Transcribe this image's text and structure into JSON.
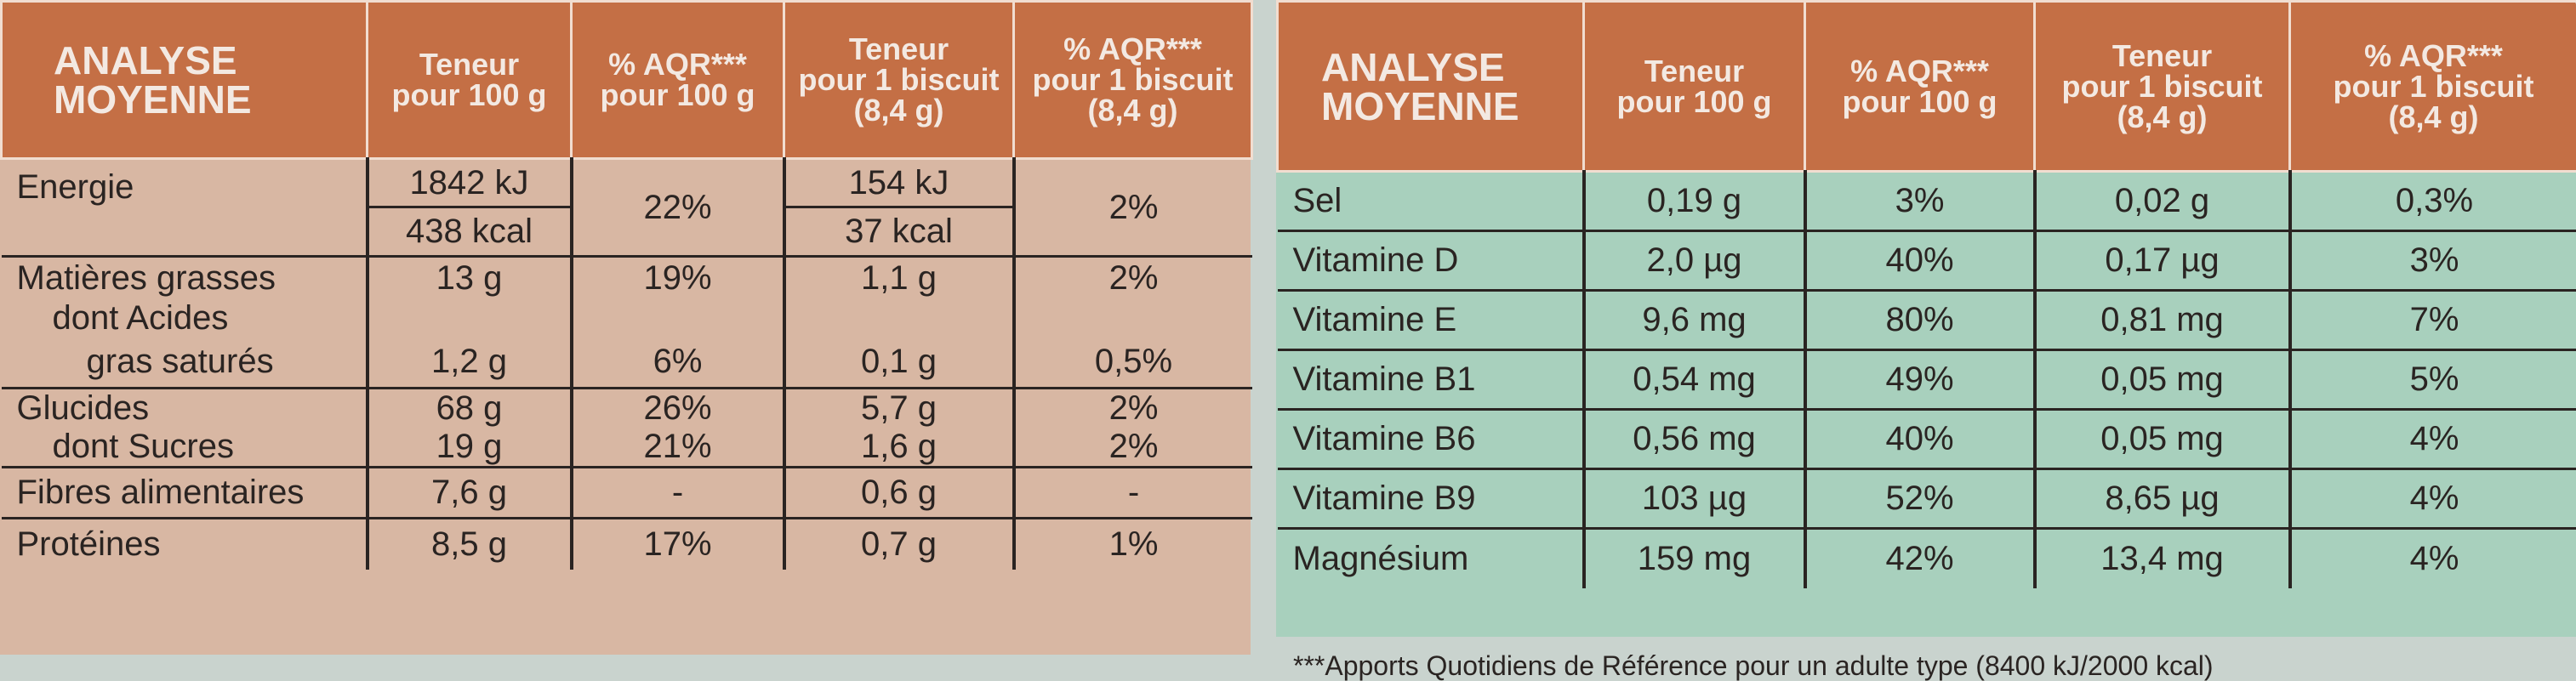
{
  "left": {
    "headers": [
      "ANALYSE MOYENNE",
      "Teneur pour 100 g",
      "% AQR*** pour 100 g",
      "Teneur pour 1 biscuit (8,4 g)",
      "% AQR*** pour 1 biscuit (8,4 g)"
    ],
    "header_lines": [
      [
        "ANALYSE",
        "MOYENNE"
      ],
      [
        "Teneur",
        "pour 100 g"
      ],
      [
        "% AQR***",
        "pour 100 g"
      ],
      [
        "Teneur",
        "pour 1 biscuit",
        "(8,4 g)"
      ],
      [
        "% AQR***",
        "pour 1 biscuit",
        "(8,4 g)"
      ]
    ],
    "rows": [
      {
        "label": "Energie",
        "v100a": "1842 kJ",
        "v100b": "438 kcal",
        "aqr100": "22%",
        "vbisa": "154 kJ",
        "vbisb": "37 kcal",
        "aqrbis": "2%"
      },
      {
        "label": "Matières grasses",
        "v100": "13 g",
        "aqr100": "19%",
        "vbis": "1,1 g",
        "aqrbis": "2%"
      },
      {
        "label": "dont Acides",
        "v100": "",
        "aqr100": "",
        "vbis": "",
        "aqrbis": ""
      },
      {
        "label": "gras saturés",
        "v100": "1,2 g",
        "aqr100": "6%",
        "vbis": "0,1 g",
        "aqrbis": "0,5%"
      },
      {
        "label": "Glucides",
        "v100": "68 g",
        "aqr100": "26%",
        "vbis": "5,7 g",
        "aqrbis": "2%"
      },
      {
        "label": "dont Sucres",
        "v100": "19 g",
        "aqr100": "21%",
        "vbis": "1,6 g",
        "aqrbis": "2%"
      },
      {
        "label": "Fibres alimentaires",
        "v100": "7,6 g",
        "aqr100": "-",
        "vbis": "0,6 g",
        "aqrbis": "-"
      },
      {
        "label": "Protéines",
        "v100": "8,5 g",
        "aqr100": "17%",
        "vbis": "0,7 g",
        "aqrbis": "1%"
      }
    ]
  },
  "right": {
    "header_lines": [
      [
        "ANALYSE",
        "MOYENNE"
      ],
      [
        "Teneur",
        "pour 100 g"
      ],
      [
        "% AQR***",
        "pour 100 g"
      ],
      [
        "Teneur",
        "pour 1 biscuit",
        "(8,4 g)"
      ],
      [
        "% AQR***",
        "pour 1 biscuit",
        "(8,4 g)"
      ]
    ],
    "rows": [
      {
        "label": "Sel",
        "v100": "0,19 g",
        "aqr100": "3%",
        "vbis": "0,02 g",
        "aqrbis": "0,3%"
      },
      {
        "label": "Vitamine D",
        "v100": "2,0 µg",
        "aqr100": "40%",
        "vbis": "0,17 µg",
        "aqrbis": "3%"
      },
      {
        "label": "Vitamine E",
        "v100": "9,6 mg",
        "aqr100": "80%",
        "vbis": "0,81 mg",
        "aqrbis": "7%"
      },
      {
        "label": "Vitamine B1",
        "v100": "0,54 mg",
        "aqr100": "49%",
        "vbis": "0,05 mg",
        "aqrbis": "5%"
      },
      {
        "label": "Vitamine B6",
        "v100": "0,56 mg",
        "aqr100": "40%",
        "vbis": "0,05 mg",
        "aqrbis": "4%"
      },
      {
        "label": "Vitamine B9",
        "v100": "103 µg",
        "aqr100": "52%",
        "vbis": "8,65 µg",
        "aqrbis": "4%"
      },
      {
        "label": "Magnésium",
        "v100": "159 mg",
        "aqr100": "42%",
        "vbis": "13,4 mg",
        "aqrbis": "4%"
      }
    ],
    "footnote": "***Apports Quotidiens de Référence pour un adulte type (8400 kJ/2000 kcal)"
  },
  "colors": {
    "header_orange": "#c46f45",
    "left_body": "#d8b7a3",
    "right_body": "#a8d0bd",
    "text": "#2a2422"
  }
}
